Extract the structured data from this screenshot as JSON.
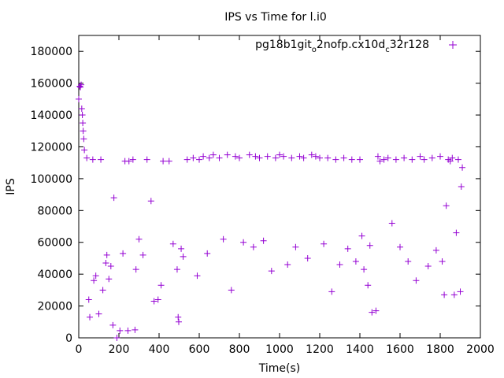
{
  "chart_data": {
    "type": "scatter",
    "title": "IPS vs Time for l.i0",
    "xlabel": "Time(s)",
    "ylabel": "IPS",
    "xlim": [
      0,
      2000
    ],
    "ylim": [
      0,
      190000
    ],
    "xticks": [
      0,
      200,
      400,
      600,
      800,
      1000,
      1200,
      1400,
      1600,
      1800,
      2000
    ],
    "yticks": [
      0,
      20000,
      40000,
      60000,
      80000,
      100000,
      120000,
      140000,
      160000,
      180000
    ],
    "grid": false,
    "legend_position": "top-right",
    "marker": "+",
    "series": [
      {
        "name_parts": [
          "pg18b1git",
          "o",
          "2nofp.cx10d",
          "c",
          "32r128"
        ],
        "color": "#9400d3",
        "points": [
          [
            0,
            150000
          ],
          [
            5,
            158000
          ],
          [
            8,
            157500
          ],
          [
            12,
            159000
          ],
          [
            15,
            144000
          ],
          [
            18,
            140000
          ],
          [
            20,
            135000
          ],
          [
            22,
            130000
          ],
          [
            25,
            125000
          ],
          [
            28,
            118000
          ],
          [
            40,
            113000
          ],
          [
            50,
            24000
          ],
          [
            55,
            13000
          ],
          [
            70,
            112000
          ],
          [
            75,
            36000
          ],
          [
            85,
            39000
          ],
          [
            100,
            15000
          ],
          [
            110,
            112000
          ],
          [
            120,
            30000
          ],
          [
            135,
            47000
          ],
          [
            140,
            52000
          ],
          [
            150,
            37000
          ],
          [
            160,
            45000
          ],
          [
            170,
            8000
          ],
          [
            175,
            88000
          ],
          [
            190,
            0
          ],
          [
            205,
            4500
          ],
          [
            220,
            53000
          ],
          [
            230,
            111000
          ],
          [
            245,
            4500
          ],
          [
            250,
            111000
          ],
          [
            270,
            112000
          ],
          [
            280,
            5000
          ],
          [
            285,
            43000
          ],
          [
            300,
            62000
          ],
          [
            320,
            52000
          ],
          [
            340,
            112000
          ],
          [
            360,
            86000
          ],
          [
            375,
            23000
          ],
          [
            395,
            24000
          ],
          [
            410,
            33000
          ],
          [
            420,
            111000
          ],
          [
            450,
            111000
          ],
          [
            470,
            59000
          ],
          [
            490,
            43000
          ],
          [
            495,
            13000
          ],
          [
            498,
            10000
          ],
          [
            510,
            56000
          ],
          [
            520,
            51000
          ],
          [
            540,
            112000
          ],
          [
            570,
            113000
          ],
          [
            590,
            39000
          ],
          [
            600,
            112000
          ],
          [
            620,
            114000
          ],
          [
            640,
            53000
          ],
          [
            650,
            113000
          ],
          [
            670,
            115000
          ],
          [
            700,
            113000
          ],
          [
            720,
            62000
          ],
          [
            740,
            115000
          ],
          [
            760,
            30000
          ],
          [
            780,
            114000
          ],
          [
            800,
            113000
          ],
          [
            820,
            60000
          ],
          [
            850,
            115000
          ],
          [
            870,
            57000
          ],
          [
            880,
            114000
          ],
          [
            900,
            113000
          ],
          [
            920,
            61000
          ],
          [
            940,
            114000
          ],
          [
            960,
            42000
          ],
          [
            980,
            113000
          ],
          [
            1000,
            115000
          ],
          [
            1020,
            114000
          ],
          [
            1040,
            46000
          ],
          [
            1060,
            113000
          ],
          [
            1080,
            57000
          ],
          [
            1100,
            114000
          ],
          [
            1120,
            113000
          ],
          [
            1140,
            50000
          ],
          [
            1160,
            115000
          ],
          [
            1180,
            114000
          ],
          [
            1200,
            113000
          ],
          [
            1220,
            59000
          ],
          [
            1240,
            113000
          ],
          [
            1260,
            29000
          ],
          [
            1280,
            112000
          ],
          [
            1300,
            46000
          ],
          [
            1320,
            113000
          ],
          [
            1340,
            56000
          ],
          [
            1360,
            112000
          ],
          [
            1380,
            48000
          ],
          [
            1400,
            112000
          ],
          [
            1410,
            64000
          ],
          [
            1420,
            43000
          ],
          [
            1440,
            33000
          ],
          [
            1450,
            58000
          ],
          [
            1460,
            16000
          ],
          [
            1480,
            17000
          ],
          [
            1490,
            114000
          ],
          [
            1500,
            111000
          ],
          [
            1520,
            112000
          ],
          [
            1540,
            113000
          ],
          [
            1560,
            72000
          ],
          [
            1580,
            112000
          ],
          [
            1600,
            57000
          ],
          [
            1620,
            113000
          ],
          [
            1640,
            48000
          ],
          [
            1660,
            112000
          ],
          [
            1680,
            36000
          ],
          [
            1700,
            114000
          ],
          [
            1720,
            112000
          ],
          [
            1740,
            45000
          ],
          [
            1760,
            113000
          ],
          [
            1780,
            55000
          ],
          [
            1800,
            114000
          ],
          [
            1810,
            48000
          ],
          [
            1820,
            27000
          ],
          [
            1830,
            83000
          ],
          [
            1840,
            112000
          ],
          [
            1850,
            111000
          ],
          [
            1860,
            113000
          ],
          [
            1870,
            27000
          ],
          [
            1880,
            66000
          ],
          [
            1890,
            112000
          ],
          [
            1900,
            29000
          ],
          [
            1905,
            95000
          ],
          [
            1910,
            107000
          ]
        ]
      }
    ]
  }
}
